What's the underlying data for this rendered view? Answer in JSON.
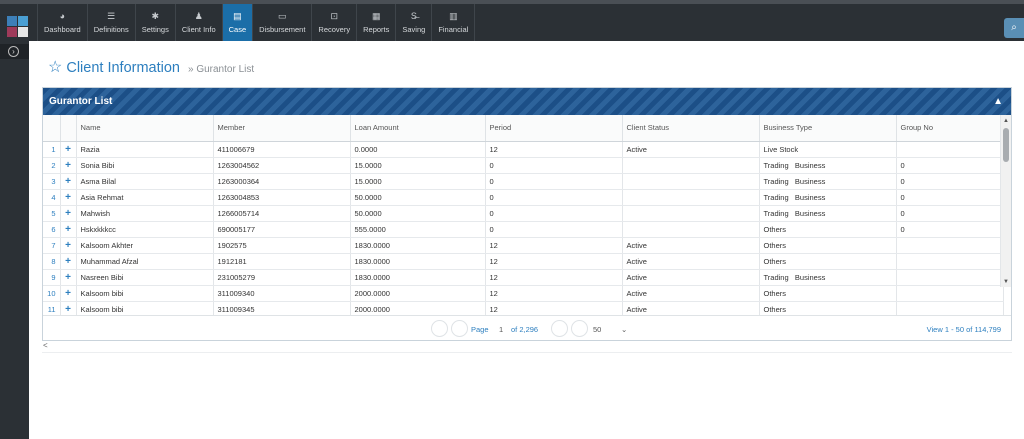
{
  "nav": [
    {
      "label": "Dashboard",
      "icon": "dashboard-icon",
      "glyph": "◕"
    },
    {
      "label": "Definitions",
      "icon": "list-icon",
      "glyph": "☰"
    },
    {
      "label": "Settings",
      "icon": "gear-icon",
      "glyph": "✱"
    },
    {
      "label": "Client Info",
      "icon": "user-icon",
      "glyph": "♟"
    },
    {
      "label": "Case",
      "icon": "document-icon",
      "glyph": "▤",
      "active": true
    },
    {
      "label": "Disbursement",
      "icon": "credit-card-icon",
      "glyph": "▭"
    },
    {
      "label": "Recovery",
      "icon": "money-icon",
      "glyph": "⊡"
    },
    {
      "label": "Reports",
      "icon": "grid-icon",
      "glyph": "▦"
    },
    {
      "label": "Saving",
      "icon": "strikethrough-s-icon",
      "glyph": "S̶"
    },
    {
      "label": "Financial",
      "icon": "bar-chart-icon",
      "glyph": "▥"
    }
  ],
  "page": {
    "title": "Client Information",
    "breadcrumb": "» Gurantor List"
  },
  "panel": {
    "title": "Gurantor List"
  },
  "columns": [
    "Name",
    "Member",
    "Loan Amount",
    "Period",
    "Client Status",
    "Business Type",
    "Group No"
  ],
  "rows": [
    [
      "1",
      "Razia",
      "411006679",
      "0.0000",
      "12",
      "Active",
      "Live Stock",
      ""
    ],
    [
      "2",
      "Sonia Bibi",
      "1263004562",
      "15.0000",
      "0",
      "",
      "Trading   Business",
      "0"
    ],
    [
      "3",
      "Asma Bilal",
      "1263000364",
      "15.0000",
      "0",
      "",
      "Trading   Business",
      "0"
    ],
    [
      "4",
      "Asia Rehmat",
      "1263004853",
      "50.0000",
      "0",
      "",
      "Trading   Business",
      "0"
    ],
    [
      "5",
      "Mahwish",
      "1266005714",
      "50.0000",
      "0",
      "",
      "Trading   Business",
      "0"
    ],
    [
      "6",
      "Hskxkkkcc",
      "690005177",
      "555.0000",
      "0",
      "",
      "Others",
      "0"
    ],
    [
      "7",
      "Kalsoom Akhter",
      "1902575",
      "1830.0000",
      "12",
      "Active",
      "Others",
      ""
    ],
    [
      "8",
      "Muhammad Afzal",
      "1912181",
      "1830.0000",
      "12",
      "Active",
      "Others",
      ""
    ],
    [
      "9",
      "Nasreen Bibi",
      "231005279",
      "1830.0000",
      "12",
      "Active",
      "Trading   Business",
      ""
    ],
    [
      "10",
      "Kalsoom bibi",
      "311009340",
      "2000.0000",
      "12",
      "Active",
      "Others",
      ""
    ],
    [
      "11",
      "Kalsoom bibi",
      "311009345",
      "2000.0000",
      "12",
      "Active",
      "Others",
      ""
    ]
  ],
  "pager": {
    "page_label": "Page",
    "page_value": "1",
    "of_label": "of 2,296",
    "page_size": "50",
    "view_info": "View 1 - 50 of 114,799"
  },
  "hscroll_arrow": "<",
  "colors": {
    "accent": "#2d7fbf",
    "navbar": "#2b3035",
    "panel_head": "#1c4f87"
  }
}
